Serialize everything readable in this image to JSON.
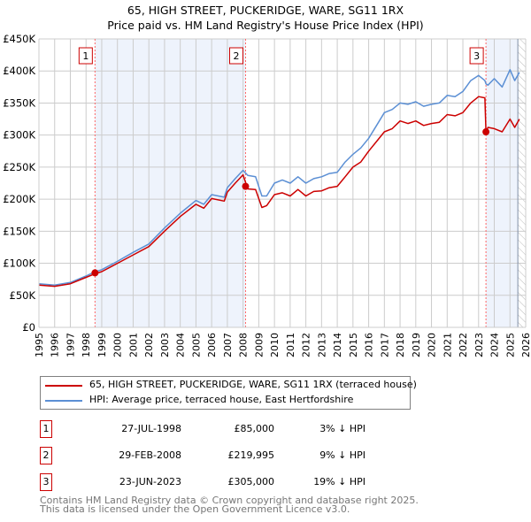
{
  "chart_data": {
    "type": "line",
    "title": "65, HIGH STREET, PUCKERIDGE, WARE, SG11 1RX",
    "subtitle": "Price paid vs. HM Land Registry's House Price Index (HPI)",
    "xlim": [
      1995,
      2026
    ],
    "ylim": [
      0,
      450000
    ],
    "grid": true,
    "x_ticks": [
      "1995",
      "1996",
      "1997",
      "1998",
      "1999",
      "2000",
      "2001",
      "2002",
      "2003",
      "2004",
      "2005",
      "2006",
      "2007",
      "2008",
      "2009",
      "2010",
      "2011",
      "2012",
      "2013",
      "2014",
      "2015",
      "2016",
      "2017",
      "2018",
      "2019",
      "2020",
      "2021",
      "2022",
      "2023",
      "2024",
      "2025",
      "2026"
    ],
    "y_ticks": [
      {
        "value": 0,
        "label": "£0"
      },
      {
        "value": 50000,
        "label": "£50K"
      },
      {
        "value": 100000,
        "label": "£100K"
      },
      {
        "value": 150000,
        "label": "£150K"
      },
      {
        "value": 200000,
        "label": "£200K"
      },
      {
        "value": 250000,
        "label": "£250K"
      },
      {
        "value": 300000,
        "label": "£300K"
      },
      {
        "value": 350000,
        "label": "£350K"
      },
      {
        "value": 400000,
        "label": "£400K"
      },
      {
        "value": 450000,
        "label": "£450K"
      }
    ],
    "x": [
      1995,
      1996,
      1997,
      1998,
      1998.5,
      1999,
      2000,
      2001,
      2002,
      2003,
      2004,
      2005,
      2005.5,
      2006,
      2006.8,
      2007,
      2007.5,
      2008,
      2008.3,
      2008.8,
      2009.2,
      2009.5,
      2010,
      2010.5,
      2011,
      2011.5,
      2012,
      2012.5,
      2013,
      2013.5,
      2014,
      2014.5,
      2015,
      2015.5,
      2016,
      2016.5,
      2017,
      2017.5,
      2018,
      2018.5,
      2019,
      2019.5,
      2020,
      2020.5,
      2021,
      2021.5,
      2022,
      2022.5,
      2023,
      2023.4,
      2023.47,
      2023.6,
      2024,
      2024.5,
      2025,
      2025.3,
      2025.6
    ],
    "series": [
      {
        "name": "65, HIGH STREET, PUCKERIDGE, WARE, SG11 1RX (terraced house)",
        "color": "#cc0000",
        "values": [
          66000,
          64000,
          68000,
          78000,
          83000,
          87000,
          100000,
          113000,
          126000,
          150000,
          173000,
          192000,
          186000,
          201000,
          197000,
          211000,
          225000,
          238000,
          216000,
          215000,
          187000,
          190000,
          207000,
          210000,
          205000,
          215000,
          205000,
          212000,
          213000,
          218000,
          220000,
          235000,
          250000,
          258000,
          275000,
          290000,
          305000,
          310000,
          322000,
          318000,
          322000,
          315000,
          318000,
          320000,
          332000,
          330000,
          335000,
          350000,
          360000,
          358000,
          305000,
          312000,
          310000,
          305000,
          325000,
          312000,
          325000
        ]
      },
      {
        "name": "HPI: Average price, terraced house, East Hertfordshire",
        "color": "#5b8fd4",
        "values": [
          68000,
          66000,
          70000,
          80000,
          86000,
          90000,
          103000,
          117000,
          130000,
          155000,
          178000,
          198000,
          192000,
          207000,
          203000,
          218000,
          232000,
          245000,
          237000,
          235000,
          205000,
          205000,
          225000,
          230000,
          225000,
          235000,
          225000,
          232000,
          235000,
          240000,
          242000,
          258000,
          270000,
          280000,
          295000,
          315000,
          335000,
          340000,
          350000,
          348000,
          352000,
          345000,
          348000,
          350000,
          362000,
          360000,
          368000,
          385000,
          393000,
          385000,
          380000,
          378000,
          388000,
          375000,
          402000,
          385000,
          398000
        ]
      }
    ],
    "shaded_ranges": [
      [
        1998.57,
        2008.16
      ],
      [
        2023.47,
        2025.5
      ]
    ],
    "forecast_from": 2025.5,
    "sales": [
      {
        "num": "1",
        "x": 1998.57,
        "date": "27-JUL-1998",
        "price": "£85,000",
        "value": 85000,
        "hpi": "3% ↓ HPI"
      },
      {
        "num": "2",
        "x": 2008.16,
        "date": "29-FEB-2008",
        "price": "£219,995",
        "value": 219995,
        "hpi": "9% ↓ HPI"
      },
      {
        "num": "3",
        "x": 2023.47,
        "date": "23-JUN-2023",
        "price": "£305,000",
        "value": 305000,
        "hpi": "19% ↓ HPI"
      }
    ],
    "legend": [
      "65, HIGH STREET, PUCKERIDGE, WARE, SG11 1RX (terraced house)",
      "HPI: Average price, terraced house, East Hertfordshire"
    ],
    "legend_placement": "below"
  },
  "footer": {
    "line1": "Contains HM Land Registry data © Crown copyright and database right 2025.",
    "line2": "This data is licensed under the Open Government Licence v3.0."
  }
}
